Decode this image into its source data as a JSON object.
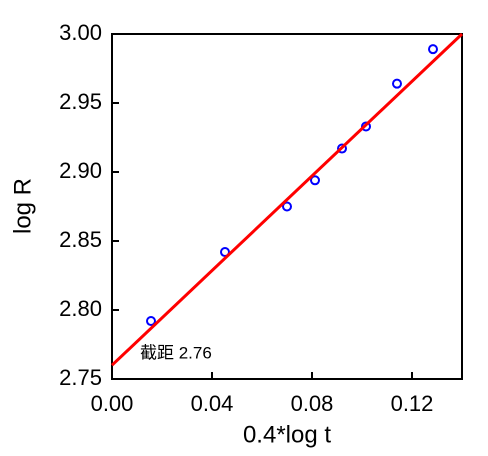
{
  "chart_data": {
    "type": "scatter",
    "xlabel": "0.4*log t",
    "ylabel": "log R",
    "annotation": "截距 2.76",
    "xlim": [
      0,
      0.14
    ],
    "ylim": [
      2.75,
      3.0
    ],
    "xticks": [
      {
        "value": 0,
        "label": "0.00"
      },
      0.04,
      0.08,
      0.12
    ],
    "yticks": [
      2.75,
      {
        "value": 2.8,
        "label": "2.80"
      },
      2.85,
      {
        "value": 2.9,
        "label": "2.90"
      },
      2.95,
      {
        "value": 3.0,
        "label": "3.00"
      }
    ],
    "series": [
      {
        "kind": "scatter",
        "color": "#0000ff",
        "x": [
          0.0156,
          0.0452,
          0.07,
          0.0812,
          0.092,
          0.1016,
          0.114,
          0.1284
        ],
        "values": [
          2.792,
          2.842,
          2.875,
          2.894,
          2.917,
          2.933,
          2.964,
          2.989
        ]
      },
      {
        "kind": "line",
        "color": "#ff0000",
        "x": [
          0,
          0.14
        ],
        "values": [
          2.76,
          3.0
        ]
      }
    ]
  }
}
